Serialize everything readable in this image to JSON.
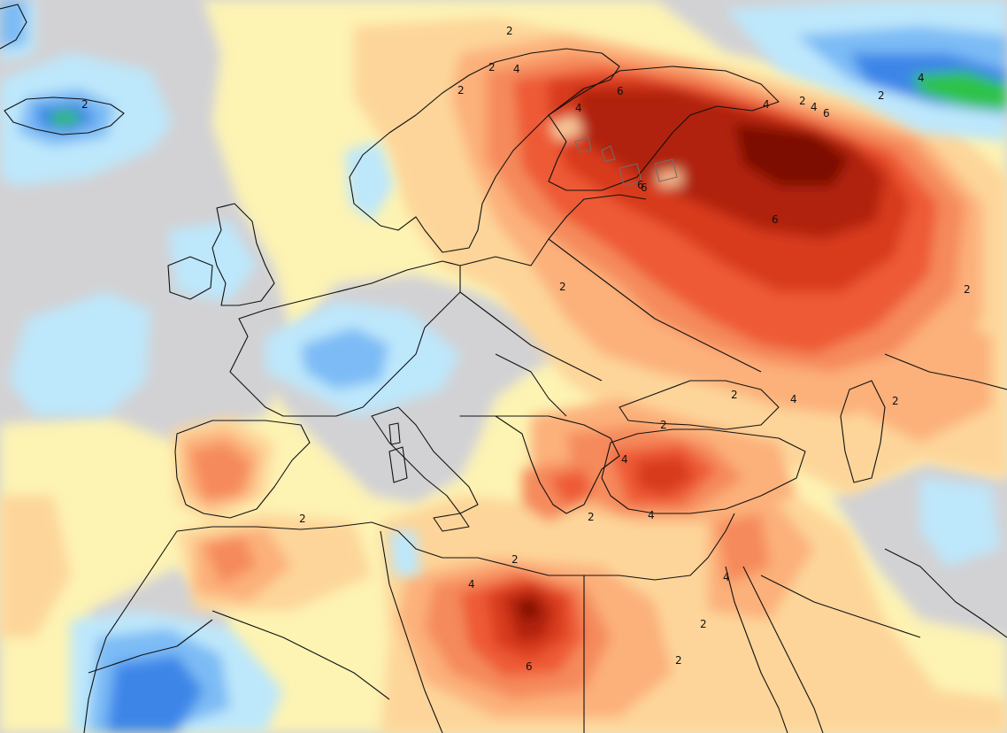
{
  "map": {
    "type": "temperature-anomaly",
    "colors": {
      "neutral_gray": "#d2d2d4",
      "pale_yellow": "#fdf3b3",
      "light_orange": "#fdd59a",
      "orange": "#fcb07a",
      "dark_orange": "#f58a5c",
      "red_orange": "#ee5a36",
      "red": "#d83a1d",
      "dark_red": "#b0200e",
      "deep_red": "#7c1106",
      "light_blue": "#bde7fb",
      "blue": "#7cbbf5",
      "dark_blue": "#3d86e8",
      "green": "#2ec24a",
      "coastline": "#111111",
      "lake_outline": "#6e6e6e"
    },
    "contour_labels": [
      {
        "text": "2",
        "lon_hint": "north-sea"
      },
      {
        "text": "2",
        "lon_hint": "iceland"
      },
      {
        "text": "2",
        "lon_hint": "norway"
      },
      {
        "text": "4",
        "lon_hint": "norway-north"
      },
      {
        "text": "2",
        "lon_hint": "kola"
      },
      {
        "text": "6",
        "lon_hint": "finland"
      },
      {
        "text": "4",
        "lon_hint": "lapland"
      },
      {
        "text": "6",
        "lon_hint": "kola-east"
      },
      {
        "text": "4",
        "lon_hint": "white-sea"
      },
      {
        "text": "2",
        "lon_hint": "barents"
      },
      {
        "text": "4",
        "lon_hint": "barents-east"
      },
      {
        "text": "6",
        "lon_hint": "barents-east-2"
      },
      {
        "text": "2",
        "lon_hint": "novaya-zemlya"
      },
      {
        "text": "4",
        "lon_hint": "kara-sea"
      },
      {
        "text": "6",
        "lon_hint": "gulf-of-finland"
      },
      {
        "text": "6",
        "lon_hint": "central-russia"
      },
      {
        "text": "2",
        "lon_hint": "baltic-south"
      },
      {
        "text": "2",
        "lon_hint": "kazakhstan"
      },
      {
        "text": "2",
        "lon_hint": "black-sea"
      },
      {
        "text": "4",
        "lon_hint": "volga"
      },
      {
        "text": "2",
        "lon_hint": "caspian"
      },
      {
        "text": "2",
        "lon_hint": "anatolia"
      },
      {
        "text": "4",
        "lon_hint": "aegean"
      },
      {
        "text": "4",
        "lon_hint": "anatolia-south"
      },
      {
        "text": "2",
        "lon_hint": "crete"
      },
      {
        "text": "2",
        "lon_hint": "iberia-south"
      },
      {
        "text": "2",
        "lon_hint": "libya-north"
      },
      {
        "text": "4",
        "lon_hint": "libya-west"
      },
      {
        "text": "6",
        "lon_hint": "libya-south"
      },
      {
        "text": "2",
        "lon_hint": "egypt"
      },
      {
        "text": "2",
        "lon_hint": "sinai"
      },
      {
        "text": "4",
        "lon_hint": "levant"
      }
    ]
  }
}
